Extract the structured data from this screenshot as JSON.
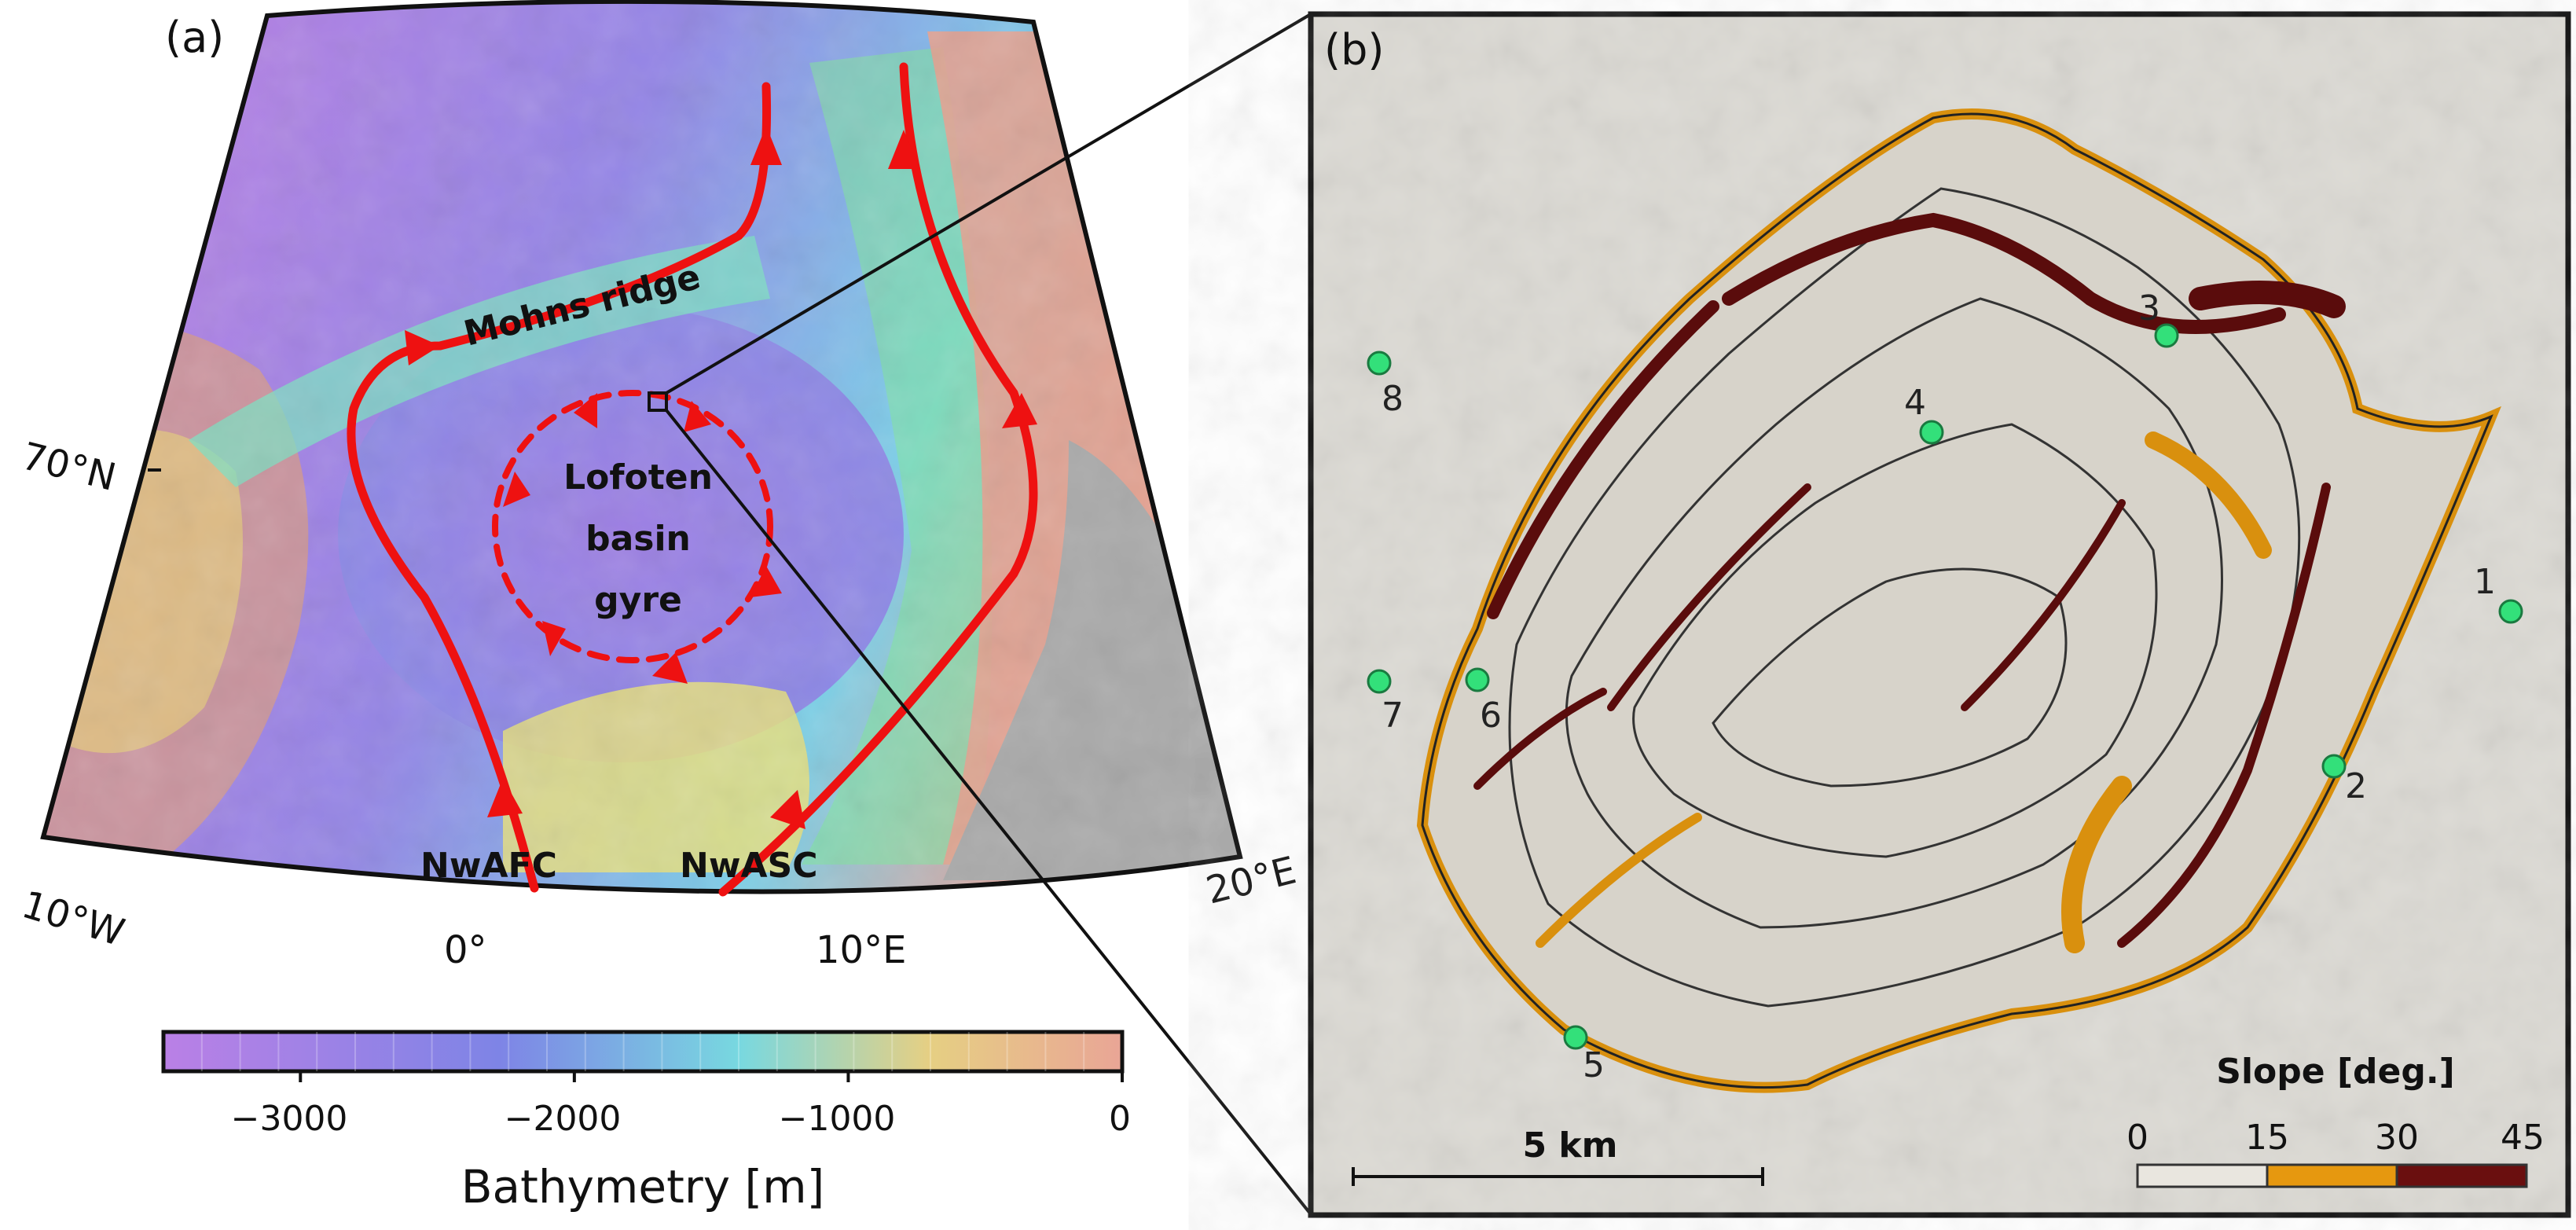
{
  "panel_a": {
    "label": "(a)",
    "lat_label": "70°N",
    "lon_labels": [
      "10°W",
      "0°",
      "10°E",
      "20°E"
    ],
    "features": {
      "ridge": "Mohns ridge",
      "gyre_line1": "Lofoten",
      "gyre_line2": "basin",
      "gyre_line3": "gyre",
      "current_west": "NwAFC",
      "current_east": "NwASC"
    },
    "colorbar": {
      "title": "Bathymetry [m]",
      "ticks": [
        "−3000",
        "−2000",
        "−1000",
        "0"
      ],
      "range": [
        -3500,
        0
      ],
      "colors": [
        "#c27ee3",
        "#9b7fe6",
        "#7f86e8",
        "#6fa6ee",
        "#74d2e6",
        "#7fe6c8",
        "#8fe88a",
        "#bfe27a",
        "#e8d37f",
        "#eeb883",
        "#e59a8f",
        "#d9a3a6"
      ]
    },
    "colors": {
      "current": "#ee1111",
      "land": "#a9a9a9"
    }
  },
  "panel_b": {
    "label": "(b)",
    "sites": [
      {
        "id": "1",
        "label": "1"
      },
      {
        "id": "2",
        "label": "2"
      },
      {
        "id": "3",
        "label": "3"
      },
      {
        "id": "4",
        "label": "4"
      },
      {
        "id": "5",
        "label": "5"
      },
      {
        "id": "6",
        "label": "6"
      },
      {
        "id": "7",
        "label": "7"
      },
      {
        "id": "8",
        "label": "8"
      }
    ],
    "scale_bar": "5 km",
    "slope_legend": {
      "title": "Slope [deg.]",
      "ticks": [
        "0",
        "15",
        "30",
        "45"
      ],
      "colors": [
        "#e9e6df",
        "#e6980f",
        "#6a0f0f"
      ]
    },
    "colors": {
      "site": "#33e07a",
      "seafloor": "#dcdad4",
      "slope_mid": "#d9900e",
      "slope_high": "#5a0c0c"
    }
  }
}
